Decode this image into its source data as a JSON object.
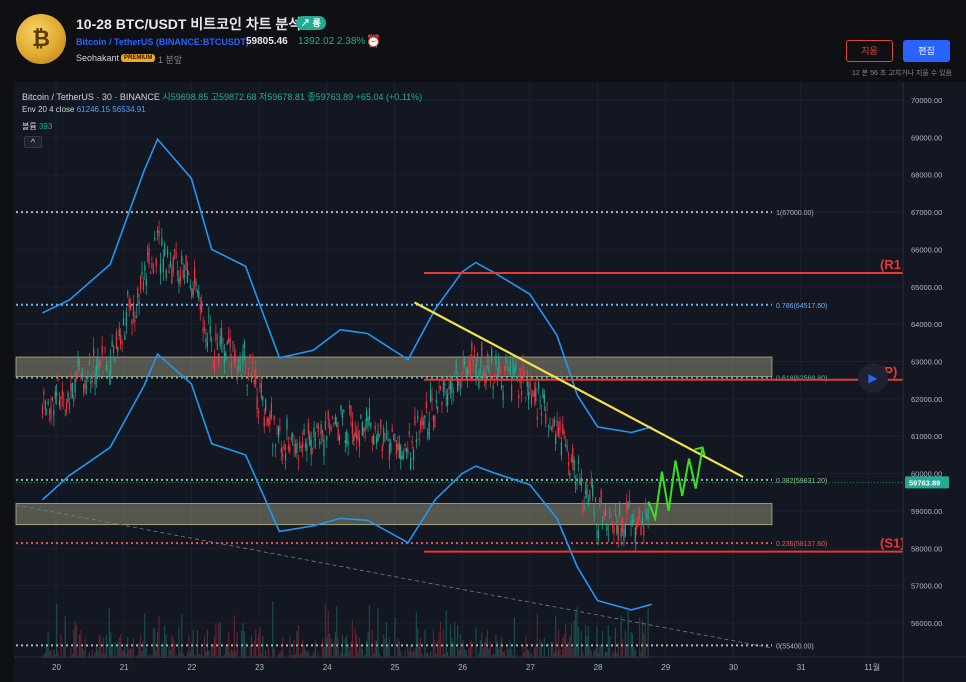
{
  "header": {
    "title": "10-28 BTC/USDT 비트코인 차트 분석",
    "badge": "↗ 롱",
    "symbol_full": "Bitcoin / TetherUS (BINANCE:BTCUSDT)",
    "price": "59805.46",
    "change": "1392.02  2.38%",
    "author": "Seohakant",
    "premium": "PREMIUM",
    "ago": "1 분앞",
    "delete_label": "지움",
    "edit_label": "편집",
    "edit_note": "12 분 56 초 고치거나 지울 수 있음"
  },
  "legend": {
    "line1_name": "Bitcoin / TetherUS · 30 · BINANCE",
    "line1_values": "시59698.85 고59872.68 저59678.81 종59763.89 +65.04 (+0.11%)",
    "line2_label": "Env 20 4 close",
    "line2_values": "61246.15  56534.91",
    "line3_label": "볼륨",
    "line3_value": "393",
    "collapse": "^"
  },
  "icons": {
    "logo": "coin-logo-icon",
    "alarm": "alarm-clock-icon",
    "play": "play-icon"
  },
  "colors": {
    "up": "#22ab94",
    "down": "#f23645",
    "band": "#2196f3",
    "trend": "#f5e14a",
    "level": "#e53935",
    "accent": "#2962ff"
  },
  "chart_data": {
    "type": "line",
    "symbol": "BTCUSDT",
    "interval": "30",
    "ylim": [
      55000,
      70300
    ],
    "y_ticks": [
      "70000.00",
      "69000.00",
      "68000.00",
      "67000.00",
      "66000.00",
      "65000.00",
      "64000.00",
      "63000.00",
      "62000.00",
      "61000.00",
      "60000.00",
      "59000.00",
      "58000.00",
      "57000.00",
      "56000.00"
    ],
    "x_ticks": [
      "20",
      "21",
      "22",
      "23",
      "24",
      "25",
      "26",
      "27",
      "28",
      "29",
      "30",
      "31",
      "11월"
    ],
    "last_price_label": "59763.89",
    "fib_levels": [
      {
        "label": "1(67000.00)",
        "value": 67000.0
      },
      {
        "label": "0.786(64517.60)",
        "value": 64517.6
      },
      {
        "label": "0.618(62568.80)",
        "value": 62568.8
      },
      {
        "label": "0.382(59831.20)",
        "value": 59831.2
      },
      {
        "label": "0.236(58137.60)",
        "value": 58137.6
      },
      {
        "label": "0(55400.00)",
        "value": 55400.0
      }
    ],
    "levels": [
      {
        "label": "(R1",
        "value": 65370
      },
      {
        "label": "(P)",
        "value": 62510
      },
      {
        "label": "(S1)",
        "value": 57910
      }
    ],
    "zones": [
      {
        "from": 62600,
        "to": 63120
      },
      {
        "from": 58630,
        "to": 59200
      }
    ],
    "trendline": {
      "x_from": "25",
      "y_from": 64580,
      "x_to": "30",
      "y_to": 59910
    },
    "envelope_upper": [
      [
        19.8,
        64300
      ],
      [
        20.2,
        64650
      ],
      [
        20.8,
        65600
      ],
      [
        21.3,
        68100
      ],
      [
        21.5,
        68950
      ],
      [
        22.0,
        67900
      ],
      [
        22.3,
        66000
      ],
      [
        22.8,
        65550
      ],
      [
        23.3,
        63100
      ],
      [
        23.8,
        63300
      ],
      [
        24.2,
        63850
      ],
      [
        24.6,
        63750
      ],
      [
        25.2,
        63050
      ],
      [
        25.6,
        64400
      ],
      [
        26.0,
        65400
      ],
      [
        26.2,
        65650
      ],
      [
        26.5,
        65350
      ],
      [
        27.0,
        64800
      ],
      [
        27.4,
        63700
      ],
      [
        27.7,
        62100
      ],
      [
        28.0,
        61250
      ],
      [
        28.5,
        61100
      ],
      [
        28.8,
        61250
      ]
    ],
    "envelope_lower": [
      [
        19.8,
        59300
      ],
      [
        20.2,
        59950
      ],
      [
        20.8,
        60700
      ],
      [
        21.3,
        62350
      ],
      [
        21.5,
        63200
      ],
      [
        22.0,
        62400
      ],
      [
        22.3,
        60800
      ],
      [
        22.8,
        60500
      ],
      [
        23.3,
        58450
      ],
      [
        23.8,
        58600
      ],
      [
        24.2,
        58800
      ],
      [
        24.6,
        58750
      ],
      [
        25.2,
        58150
      ],
      [
        25.6,
        59300
      ],
      [
        26.0,
        60000
      ],
      [
        26.2,
        60200
      ],
      [
        26.5,
        60000
      ],
      [
        27.0,
        59700
      ],
      [
        27.4,
        58800
      ],
      [
        27.7,
        57500
      ],
      [
        28.0,
        56600
      ],
      [
        28.5,
        56350
      ],
      [
        28.8,
        56500
      ]
    ],
    "projection": [
      [
        28.75,
        59250
      ],
      [
        28.85,
        58800
      ],
      [
        28.95,
        60050
      ],
      [
        29.05,
        59000
      ],
      [
        29.15,
        60350
      ],
      [
        29.25,
        59400
      ],
      [
        29.35,
        60400
      ],
      [
        29.45,
        59600
      ],
      [
        29.55,
        60700
      ]
    ]
  }
}
